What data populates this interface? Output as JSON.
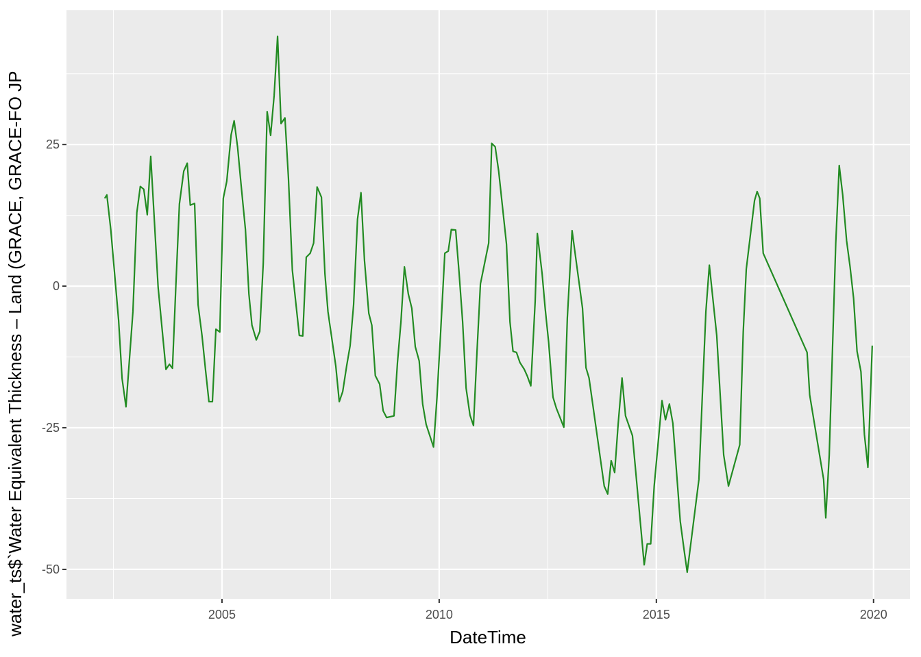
{
  "chart_data": {
    "type": "line",
    "x_label": "DateTime",
    "y_label": "water_ts$`Water Equivalent Thickness – Land (GRACE, GRACE-FO JP",
    "xlim": [
      2001.42,
      2020.84
    ],
    "xticks": [
      2005,
      2010,
      2015,
      2020
    ],
    "ylim": [
      -55.2,
      48.7
    ],
    "yticks": [
      -50,
      -25,
      0,
      25
    ],
    "grid": true,
    "series": [
      {
        "color": "#228B22",
        "x": [
          2002.3,
          2002.35,
          2002.44,
          2002.62,
          2002.7,
          2002.79,
          2002.95,
          2003.04,
          2003.12,
          2003.2,
          2003.28,
          2003.36,
          2003.53,
          2003.71,
          2003.79,
          2003.86,
          2003.94,
          2004.02,
          2004.12,
          2004.2,
          2004.27,
          2004.37,
          2004.45,
          2004.54,
          2004.62,
          2004.7,
          2004.78,
          2004.86,
          2004.95,
          2005.03,
          2005.11,
          2005.21,
          2005.28,
          2005.36,
          2005.44,
          2005.54,
          2005.62,
          2005.69,
          2005.79,
          2005.87,
          2005.95,
          2006.04,
          2006.12,
          2006.2,
          2006.28,
          2006.36,
          2006.45,
          2006.53,
          2006.62,
          2006.78,
          2006.86,
          2006.94,
          2007.03,
          2007.11,
          2007.19,
          2007.29,
          2007.37,
          2007.44,
          2007.62,
          2007.7,
          2007.78,
          2007.87,
          2007.95,
          2008.03,
          2008.12,
          2008.2,
          2008.28,
          2008.38,
          2008.45,
          2008.53,
          2008.63,
          2008.71,
          2008.79,
          2008.96,
          2009.04,
          2009.12,
          2009.2,
          2009.29,
          2009.37,
          2009.45,
          2009.54,
          2009.62,
          2009.7,
          2009.87,
          2009.95,
          2010.03,
          2010.13,
          2010.21,
          2010.28,
          2010.38,
          2010.46,
          2010.54,
          2010.62,
          2010.71,
          2010.79,
          2010.87,
          2010.95,
          2011.14,
          2011.21,
          2011.29,
          2011.37,
          2011.55,
          2011.63,
          2011.7,
          2011.78,
          2011.86,
          2011.96,
          2012.03,
          2012.11,
          2012.21,
          2012.26,
          2012.37,
          2012.44,
          2012.52,
          2012.62,
          2012.7,
          2012.87,
          2012.95,
          2013.06,
          2013.14,
          2013.3,
          2013.38,
          2013.45,
          2013.8,
          2013.88,
          2013.96,
          2014.04,
          2014.12,
          2014.21,
          2014.29,
          2014.45,
          2014.72,
          2014.79,
          2014.87,
          2014.95,
          2015.13,
          2015.21,
          2015.3,
          2015.38,
          2015.55,
          2015.63,
          2015.71,
          2015.98,
          2016.06,
          2016.14,
          2016.22,
          2016.39,
          2016.55,
          2016.66,
          2016.92,
          2017.0,
          2017.07,
          2017.26,
          2017.32,
          2017.38,
          2017.46,
          2018.47,
          2018.53,
          2018.85,
          2018.9,
          2018.98,
          2019.05,
          2019.13,
          2019.21,
          2019.29,
          2019.38,
          2019.46,
          2019.54,
          2019.62,
          2019.71,
          2019.79,
          2019.87,
          2019.97
        ],
        "values": [
          15.5,
          16.1,
          10.0,
          -6.0,
          -16.3,
          -21.3,
          -4.5,
          13.0,
          17.6,
          17.1,
          12.6,
          22.9,
          -0.2,
          -14.7,
          -13.8,
          -14.5,
          0.4,
          14.5,
          20.3,
          21.7,
          14.3,
          14.6,
          -3.3,
          -8.7,
          -14.7,
          -20.4,
          -20.4,
          -7.6,
          -8.1,
          15.5,
          18.5,
          26.7,
          29.2,
          24.5,
          17.9,
          10.0,
          -1.4,
          -6.9,
          -9.5,
          -8.0,
          4.0,
          30.8,
          26.6,
          33.6,
          44.1,
          28.7,
          29.7,
          19.1,
          2.8,
          -8.7,
          -8.8,
          5.1,
          5.8,
          7.6,
          17.5,
          15.7,
          2.2,
          -4.5,
          -14.1,
          -20.4,
          -18.6,
          -14.1,
          -10.5,
          -3.3,
          11.8,
          16.5,
          4.6,
          -4.8,
          -6.9,
          -15.8,
          -17.3,
          -22.0,
          -23.2,
          -22.9,
          -13.5,
          -6.3,
          3.4,
          -1.4,
          -3.9,
          -10.7,
          -13.2,
          -20.8,
          -24.4,
          -28.4,
          -19.6,
          -8.7,
          5.8,
          6.2,
          10.0,
          9.9,
          2.2,
          -6.3,
          -18.0,
          -22.8,
          -24.6,
          -11.7,
          0.4,
          7.6,
          25.2,
          24.6,
          20.3,
          7.4,
          -6.3,
          -11.5,
          -11.7,
          -13.5,
          -14.7,
          -15.9,
          -17.6,
          -2.7,
          9.3,
          2.2,
          -3.9,
          -9.9,
          -19.6,
          -21.6,
          -24.9,
          -5.7,
          9.8,
          5.2,
          -3.9,
          -14.4,
          -16.2,
          -35.3,
          -36.7,
          -30.8,
          -32.9,
          -24.4,
          -16.2,
          -22.9,
          -26.4,
          -49.2,
          -45.5,
          -45.5,
          -35.3,
          -20.2,
          -23.6,
          -20.8,
          -24.2,
          -41.5,
          -46.1,
          -50.5,
          -34.1,
          -19.0,
          -4.5,
          3.7,
          -8.7,
          -29.8,
          -35.3,
          -28.0,
          -8.1,
          3.0,
          15.1,
          16.7,
          15.5,
          5.8,
          -11.7,
          -19.2,
          -34.1,
          -40.9,
          -29.8,
          -12.3,
          7.6,
          21.3,
          16.1,
          8.0,
          3.4,
          -2.1,
          -11.5,
          -15.1,
          -26.2,
          -32.0,
          -10.5
        ]
      }
    ]
  }
}
